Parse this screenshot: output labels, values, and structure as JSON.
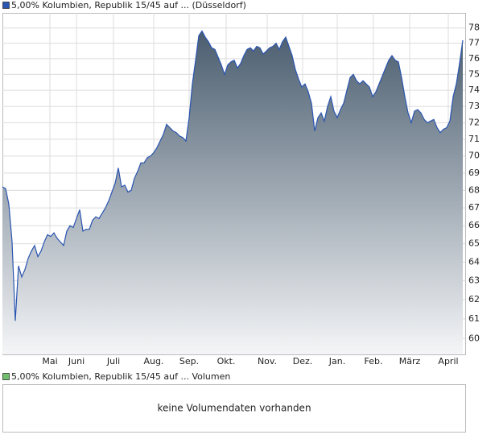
{
  "chart_data": [
    {
      "type": "area",
      "series": [
        {
          "name": "5,00% Kolumbien, Republik 15/45 auf ... (Düsseldorf)",
          "color": "#2a55b0",
          "fill_top": "#4a5d6f",
          "fill_bottom": "#f4f5f7",
          "values": [
            68.2,
            68.1,
            67.2,
            65.1,
            60.9,
            63.8,
            63.2,
            63.6,
            64.2,
            64.6,
            64.9,
            64.3,
            64.6,
            65.1,
            65.5,
            65.4,
            65.6,
            65.3,
            65.1,
            64.9,
            65.7,
            66.0,
            65.9,
            66.4,
            66.9,
            65.7,
            65.8,
            65.8,
            66.3,
            66.5,
            66.4,
            66.7,
            67.0,
            67.4,
            67.9,
            68.4,
            69.3,
            68.2,
            68.3,
            67.9,
            68.0,
            68.7,
            69.1,
            69.6,
            69.6,
            69.9,
            70.0,
            70.2,
            70.5,
            70.9,
            71.3,
            71.9,
            71.7,
            71.5,
            71.4,
            71.2,
            71.1,
            70.9,
            72.3,
            74.4,
            75.9,
            77.5,
            77.8,
            77.4,
            77.1,
            76.7,
            76.6,
            76.1,
            75.6,
            75.0,
            75.6,
            75.8,
            75.9,
            75.4,
            75.7,
            76.2,
            76.6,
            76.7,
            76.5,
            76.8,
            76.7,
            76.3,
            76.5,
            76.7,
            76.8,
            77.0,
            76.6,
            77.1,
            77.4,
            76.8,
            76.2,
            75.3,
            74.7,
            74.2,
            74.4,
            73.9,
            73.2,
            71.5,
            72.3,
            72.6,
            72.1,
            73.0,
            73.6,
            72.7,
            72.3,
            72.8,
            73.2,
            74.0,
            74.8,
            75.0,
            74.6,
            74.4,
            74.6,
            74.4,
            74.2,
            73.6,
            73.9,
            74.4,
            74.9,
            75.4,
            75.9,
            76.2,
            75.9,
            75.8,
            74.8,
            73.6,
            72.6,
            72.0,
            72.7,
            72.8,
            72.6,
            72.2,
            72.0,
            72.1,
            72.2,
            71.7,
            71.4,
            71.6,
            71.7,
            72.1,
            73.6,
            74.4,
            75.7,
            77.2
          ]
        }
      ],
      "xlim": [
        0,
        143.75
      ],
      "xticks": [
        {
          "value": 14.75,
          "label": "Mai"
        },
        {
          "value": 23,
          "label": "Juni"
        },
        {
          "value": 34.5,
          "label": "Juli"
        },
        {
          "value": 47,
          "label": "Aug."
        },
        {
          "value": 58,
          "label": "Sep."
        },
        {
          "value": 69.5,
          "label": "Okt."
        },
        {
          "value": 82.25,
          "label": "Nov."
        },
        {
          "value": 93.25,
          "label": "Dez."
        },
        {
          "value": 104,
          "label": "Jan."
        },
        {
          "value": 115.25,
          "label": "Feb."
        },
        {
          "value": 126.5,
          "label": "März"
        },
        {
          "value": 138.5,
          "label": "April"
        }
      ],
      "ylim": [
        59.2,
        79.0
      ],
      "yticks": [
        60,
        61,
        62,
        63,
        64,
        65,
        66,
        67,
        68,
        69,
        70,
        71,
        72,
        73,
        74,
        75,
        76,
        77,
        78
      ],
      "log": true,
      "grid": true
    },
    {
      "type": "volume",
      "series": [
        {
          "name": "5,00% Kolumbien, Republik 15/45 auf ... Volumen",
          "color": "#6fbf6f"
        }
      ],
      "message": "keine Volumendaten vorhanden"
    }
  ]
}
